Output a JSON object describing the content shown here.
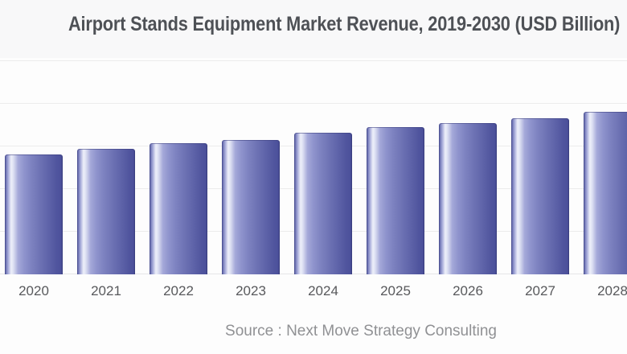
{
  "header": {
    "title": "Airport Stands Equipment Market Revenue, 2019-2030 (USD Billion)"
  },
  "footer": {
    "source": "Source : Next Move Strategy Consulting"
  },
  "colors": {
    "bar_body": "#7d82c0",
    "bar_edge_dark": "#4a4f99",
    "bar_highlight": "#eef0fa",
    "title_text": "#4e5156",
    "axis_label_text": "#58595c",
    "source_text": "#909194",
    "gridline": "#ececec"
  },
  "chart_data": {
    "type": "bar",
    "title": "Airport Stands Equipment Market Revenue, 2019-2030 (USD Billion)",
    "categories": [
      "2020",
      "2021",
      "2022",
      "2023",
      "2024",
      "2025",
      "2026",
      "2027",
      "2028"
    ],
    "values": [
      2.79,
      2.92,
      3.06,
      3.13,
      3.3,
      3.43,
      3.53,
      3.64,
      3.79
    ],
    "xlabel": "",
    "ylabel": "",
    "ylim": [
      0,
      5.3
    ],
    "y_gridline_step": 1,
    "grid": true,
    "legend": false,
    "annotation": "Source : Next Move Strategy Consulting"
  }
}
